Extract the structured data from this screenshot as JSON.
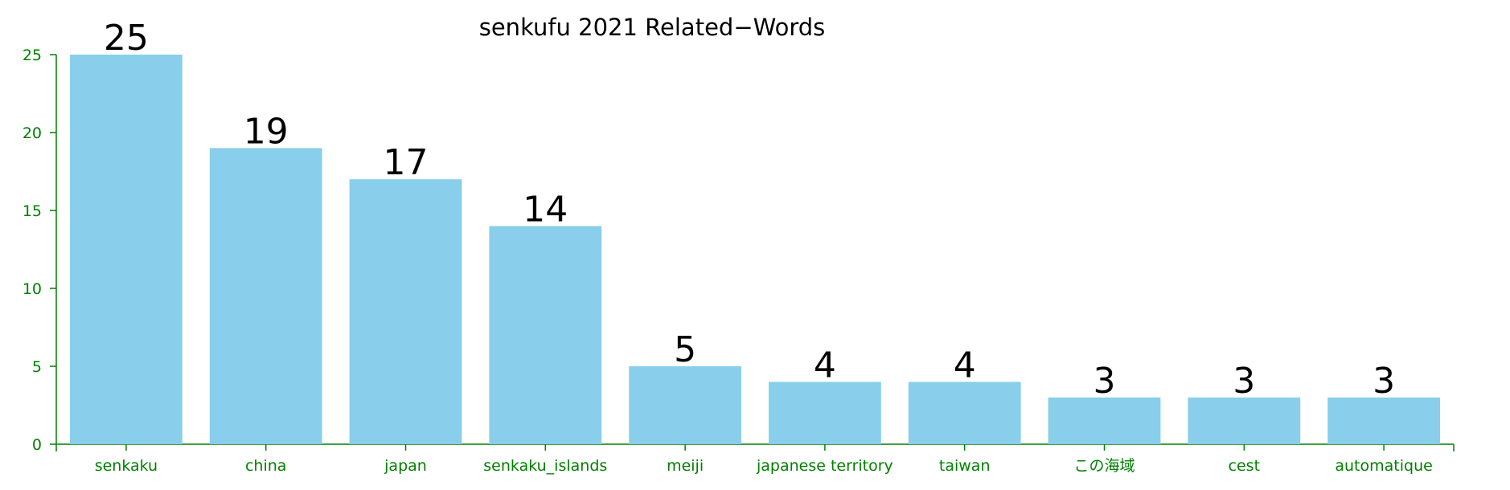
{
  "chart_data": {
    "type": "bar",
    "title": "senkufu 2021 Related−Words",
    "xlabel": "",
    "ylabel": "",
    "categories": [
      "senkaku",
      "china",
      "japan",
      "senkaku_islands",
      "meiji",
      "japanese territory",
      "taiwan",
      "この海域",
      "cest",
      "automatique"
    ],
    "values": [
      25,
      19,
      17,
      14,
      5,
      4,
      4,
      3,
      3,
      3
    ],
    "ylim": [
      0,
      25
    ],
    "yticks": [
      0,
      5,
      10,
      15,
      20,
      25
    ],
    "grid": false,
    "legend": "none",
    "colors": {
      "bar": "#89ceea",
      "axis": "#008000",
      "title": "#000000",
      "value_label": "#000000"
    }
  }
}
